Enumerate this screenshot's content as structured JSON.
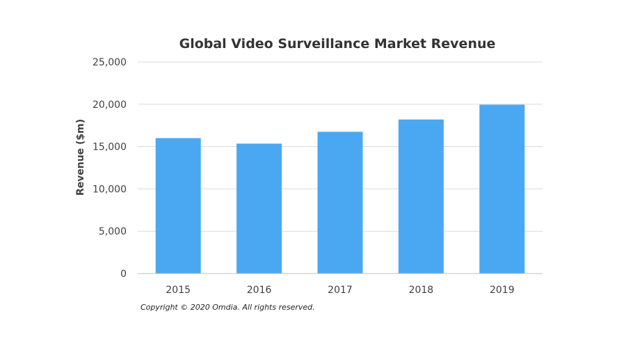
{
  "chart_data": {
    "type": "bar",
    "title": "Global Video Surveillance Market Revenue",
    "xlabel": "",
    "ylabel": "Revenue ($m)",
    "categories": [
      "2015",
      "2016",
      "2017",
      "2018",
      "2019"
    ],
    "values": [
      16000,
      15350,
      16750,
      18200,
      19950
    ],
    "ylim": [
      0,
      25000
    ],
    "yticks": [
      0,
      5000,
      10000,
      15000,
      20000,
      25000
    ],
    "ytick_labels": [
      "0",
      "5,000",
      "10,000",
      "15,000",
      "20,000",
      "25,000"
    ],
    "grid": true,
    "legend": "none",
    "bar_color": "#4aa8f2",
    "grid_color": "#d9d9d9",
    "axis_color": "#bfbfbf"
  },
  "footer": {
    "copyright": "Copyright © 2020 Omdia. All rights reserved."
  }
}
